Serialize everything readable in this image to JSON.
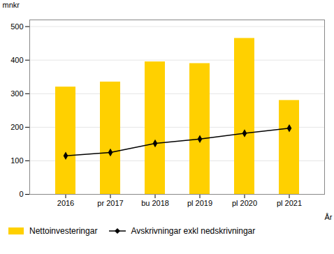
{
  "chart_data": {
    "type": "bar",
    "categories": [
      "2016",
      "pr 2017",
      "bu 2018",
      "pl 2019",
      "pl 2020",
      "pl 2021"
    ],
    "series": [
      {
        "name": "Nettoinvesteringar",
        "type": "bar",
        "color": "#FFD000",
        "values": [
          320,
          335,
          395,
          390,
          465,
          280
        ]
      },
      {
        "name": "Avskrivningar exkl nedskrivningar",
        "type": "line",
        "color": "#000000",
        "marker": "diamond",
        "values": [
          115,
          125,
          152,
          165,
          182,
          197
        ]
      }
    ],
    "ylabel": "mnkr",
    "xlabel": "År",
    "ylim": [
      0,
      520
    ],
    "yticks": [
      0,
      100,
      200,
      300,
      400,
      500
    ],
    "grid": true,
    "legend": "bottom"
  }
}
